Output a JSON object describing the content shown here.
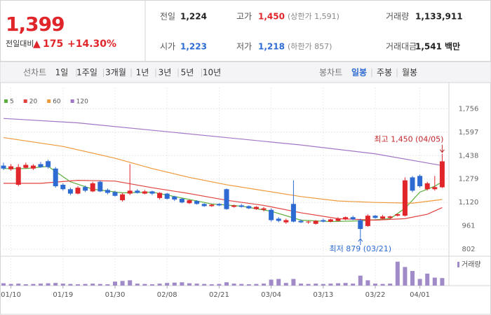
{
  "header": {
    "price": "1,399",
    "change_label": "전일대비",
    "change": "175",
    "change_pct": "+14.30%",
    "stats": [
      {
        "label": "전일",
        "value": "1,224"
      },
      {
        "label": "고가",
        "value": "1,450",
        "note": "(상한가 1,591)"
      },
      {
        "label": "거래량",
        "value": "1,133,911"
      },
      {
        "label": "시가",
        "value": "1,223"
      },
      {
        "label": "저가",
        "value": "1,218",
        "note": "(하한가 857)"
      },
      {
        "label": "거래대금",
        "value": "1,541",
        "unit": "백만"
      }
    ]
  },
  "tabs": {
    "line_label": "선차트",
    "ranges": [
      "1일",
      "1주일",
      "3개월",
      "1년",
      "3년",
      "5년",
      "10년"
    ],
    "candle_label": "봉차트",
    "periods": [
      "일봉",
      "주봉",
      "월봉"
    ],
    "active_period": 0
  },
  "chart_data": {
    "type": "candlestick",
    "categories": [
      null,
      "01/10",
      null,
      null,
      null,
      null,
      null,
      null,
      "01/19",
      null,
      null,
      null,
      null,
      null,
      null,
      "01/30",
      null,
      null,
      null,
      null,
      null,
      null,
      "02/08",
      null,
      null,
      null,
      null,
      null,
      null,
      "02/21",
      null,
      null,
      null,
      null,
      null,
      null,
      "03/04",
      null,
      null,
      null,
      null,
      null,
      null,
      "03/13",
      null,
      null,
      null,
      null,
      null,
      null,
      "03/22",
      null,
      null,
      null,
      null,
      null,
      "04/01",
      null,
      null,
      null
    ],
    "open": [
      1370,
      1345,
      1240,
      1355,
      1350,
      1380,
      1400,
      1350,
      1240,
      1210,
      1180,
      1225,
      1195,
      1260,
      1205,
      1190,
      1135,
      1180,
      1200,
      1180,
      1195,
      1150,
      1180,
      1160,
      1145,
      1115,
      1130,
      1110,
      1095,
      1110,
      1210,
      1090,
      1100,
      1095,
      1075,
      1070,
      1070,
      1010,
      985,
      1110,
      995,
      985,
      975,
      1000,
      990,
      995,
      1005,
      1020,
      1000,
      960,
      1030,
      1010,
      1015,
      1030,
      1030,
      1290,
      1300,
      1210,
      1210,
      1223
    ],
    "high": [
      1390,
      1380,
      1380,
      1390,
      1380,
      1395,
      1410,
      1360,
      1250,
      1220,
      1230,
      1235,
      1260,
      1270,
      1215,
      1200,
      1185,
      1380,
      1210,
      1205,
      1200,
      1190,
      1185,
      1165,
      1150,
      1140,
      1135,
      1115,
      1110,
      1115,
      1215,
      1105,
      1110,
      1100,
      1095,
      1090,
      1080,
      1020,
      1010,
      1270,
      1005,
      995,
      1000,
      1010,
      1010,
      1020,
      1025,
      1030,
      1010,
      1040,
      1035,
      1035,
      1030,
      1045,
      1290,
      1300,
      1310,
      1260,
      1300,
      1450
    ],
    "low": [
      1340,
      1335,
      1230,
      1350,
      1340,
      1355,
      1350,
      1220,
      1200,
      1170,
      1175,
      1190,
      1190,
      1190,
      1175,
      1160,
      1125,
      1170,
      1180,
      1175,
      1170,
      1140,
      1140,
      1130,
      1115,
      1110,
      1105,
      1090,
      1090,
      1095,
      1070,
      1085,
      1085,
      1075,
      1070,
      1060,
      990,
      985,
      975,
      985,
      980,
      975,
      970,
      985,
      985,
      990,
      1000,
      1000,
      879,
      955,
      1010,
      1005,
      1010,
      1025,
      1025,
      1190,
      1220,
      1200,
      1200,
      1218
    ],
    "close": [
      1350,
      1365,
      1360,
      1375,
      1370,
      1360,
      1360,
      1230,
      1210,
      1180,
      1220,
      1200,
      1250,
      1195,
      1185,
      1165,
      1175,
      1200,
      1185,
      1195,
      1180,
      1185,
      1145,
      1140,
      1120,
      1135,
      1110,
      1095,
      1105,
      1100,
      1075,
      1100,
      1090,
      1080,
      1090,
      1080,
      1000,
      995,
      1000,
      990,
      985,
      990,
      995,
      990,
      1005,
      1010,
      1020,
      1005,
      940,
      1030,
      1015,
      1025,
      1025,
      1040,
      1270,
      1200,
      1230,
      1250,
      1224,
      1399
    ],
    "up_color": "#e0262b",
    "down_color": "#2d6bd2",
    "moving_averages": [
      {
        "name": "5",
        "color": "#5aae3c",
        "x": [
          0,
          3,
          6,
          9,
          12,
          16,
          20,
          24,
          28,
          32,
          36,
          40,
          44,
          48,
          52,
          54,
          56,
          58,
          59
        ],
        "values": [
          1350,
          1350,
          1365,
          1260,
          1210,
          1185,
          1190,
          1150,
          1110,
          1095,
          1060,
          1000,
          990,
          995,
          1010,
          1080,
          1190,
          1230,
          1260
        ]
      },
      {
        "name": "20",
        "color": "#e2413e",
        "x": [
          0,
          5,
          10,
          15,
          20,
          25,
          30,
          35,
          40,
          45,
          50,
          54,
          57,
          59
        ],
        "values": [
          1250,
          1250,
          1270,
          1265,
          1220,
          1180,
          1135,
          1100,
          1050,
          1010,
          1000,
          1010,
          1040,
          1085
        ]
      },
      {
        "name": "60",
        "color": "#ee9a3a",
        "x": [
          0,
          8,
          15,
          20,
          25,
          30,
          35,
          40,
          45,
          50,
          55,
          59
        ],
        "values": [
          1560,
          1500,
          1420,
          1350,
          1290,
          1240,
          1200,
          1160,
          1130,
          1120,
          1115,
          1140
        ]
      },
      {
        "name": "120",
        "color": "#a276c6",
        "x": [
          0,
          10,
          20,
          30,
          40,
          50,
          59
        ],
        "values": [
          1690,
          1660,
          1610,
          1560,
          1510,
          1450,
          1370
        ]
      }
    ],
    "ylim": [
      760,
      1900
    ],
    "yticks": [
      {
        "value": 802,
        "label": "802"
      },
      {
        "value": 961,
        "label": "961"
      },
      {
        "value": 1120,
        "label": "1,120"
      },
      {
        "value": 1279,
        "label": "1,279"
      },
      {
        "value": 1438,
        "label": "1,438"
      },
      {
        "value": 1597,
        "label": "1,597"
      },
      {
        "value": 1756,
        "label": "1,756"
      }
    ],
    "grid": true,
    "annotations": [
      {
        "text": "최고 1,450 (04/05)",
        "index": 59
      },
      {
        "text": "최저 879 (03/21)",
        "index": 48
      }
    ],
    "volume_name": "거래량",
    "volume_color": "#a08ac8",
    "volume": [
      350000,
      250000,
      300000,
      200000,
      250000,
      300000,
      350000,
      400000,
      300000,
      250000,
      200000,
      250000,
      300000,
      250000,
      200000,
      600000,
      700000,
      800000,
      300000,
      250000,
      200000,
      300000,
      400000,
      450000,
      500000,
      350000,
      300000,
      250000,
      200000,
      250000,
      500000,
      300000,
      250000,
      200000,
      250000,
      300000,
      900000,
      1000000,
      400000,
      1000000,
      300000,
      250000,
      300000,
      250000,
      300000,
      350000,
      400000,
      300000,
      1500000,
      800000,
      300000,
      250000,
      300000,
      3600000,
      2800000,
      2200000,
      1000000,
      1800000,
      1200000,
      1133911
    ],
    "volume_lim": [
      0,
      4000000
    ]
  }
}
